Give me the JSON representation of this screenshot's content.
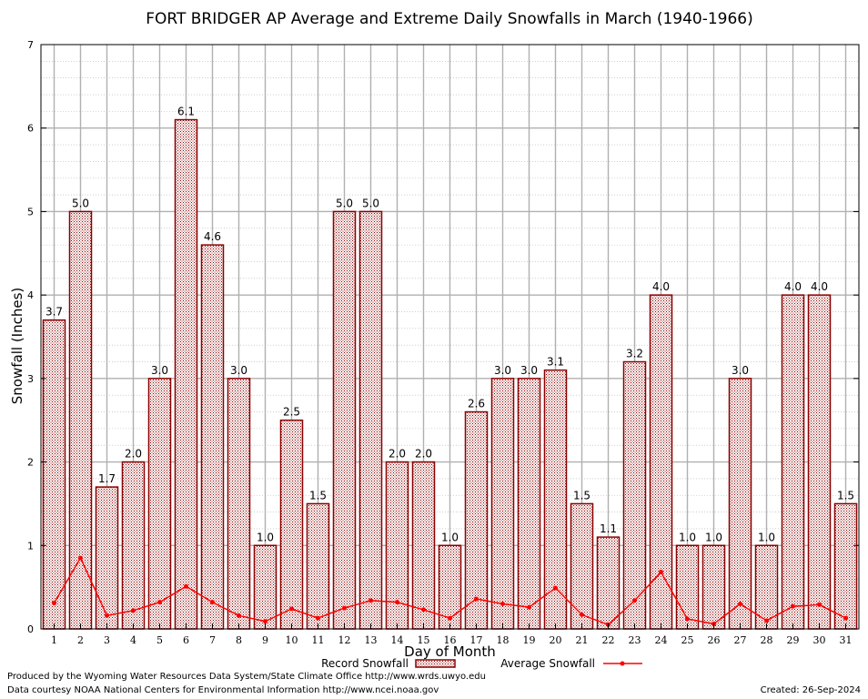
{
  "chart_data": {
    "type": "bar",
    "title": "FORT BRIDGER AP Average and Extreme Daily Snowfalls in March (1940-1966)",
    "xlabel": "Day of Month",
    "ylabel": "Snowfall (Inches)",
    "ylim": [
      0,
      7
    ],
    "yticks": [
      "0",
      "1",
      "2",
      "3",
      "4",
      "5",
      "6",
      "7"
    ],
    "categories": [
      "1",
      "2",
      "3",
      "4",
      "5",
      "6",
      "7",
      "8",
      "9",
      "10",
      "11",
      "12",
      "13",
      "14",
      "15",
      "16",
      "17",
      "18",
      "19",
      "20",
      "21",
      "22",
      "23",
      "24",
      "25",
      "26",
      "27",
      "28",
      "29",
      "30",
      "31"
    ],
    "series": [
      {
        "name": "Record Snowfall",
        "kind": "bar",
        "color": "#8b0000",
        "values": [
          3.7,
          5.0,
          1.7,
          2.0,
          3.0,
          6.1,
          4.6,
          3.0,
          1.0,
          2.5,
          1.5,
          5.0,
          5.0,
          2.0,
          2.0,
          1.0,
          2.6,
          3.0,
          3.0,
          3.1,
          1.5,
          1.1,
          3.2,
          4.0,
          1.0,
          1.0,
          3.0,
          1.0,
          4.0,
          4.0,
          1.5
        ],
        "labels": [
          "3.7",
          "5.0",
          "1.7",
          "2.0",
          "3.0",
          "6.1",
          "4.6",
          "3.0",
          "1.0",
          "2.5",
          "1.5",
          "5.0",
          "5.0",
          "2.0",
          "2.0",
          "1.0",
          "2.6",
          "3.0",
          "3.0",
          "3.1",
          "1.5",
          "1.1",
          "3.2",
          "4.0",
          "1.0",
          "1.0",
          "3.0",
          "1.0",
          "4.0",
          "4.0",
          "1.5"
        ]
      },
      {
        "name": "Average Snowfall",
        "kind": "line",
        "color": "#ff0000",
        "values": [
          0.31,
          0.85,
          0.16,
          0.22,
          0.32,
          0.51,
          0.32,
          0.16,
          0.09,
          0.24,
          0.13,
          0.25,
          0.34,
          0.32,
          0.23,
          0.13,
          0.36,
          0.3,
          0.26,
          0.49,
          0.17,
          0.05,
          0.34,
          0.68,
          0.12,
          0.06,
          0.3,
          0.1,
          0.27,
          0.29,
          0.13
        ]
      }
    ],
    "grid": true,
    "legend_position": "bottom"
  },
  "footer": {
    "line1": "Produced by the Wyoming Water Resources Data System/State Climate Office http://www.wrds.uwyo.edu",
    "line2": "Data courtesy NOAA National Centers for Environmental Information http://www.ncei.noaa.gov",
    "created": "Created:  26-Sep-2024"
  }
}
